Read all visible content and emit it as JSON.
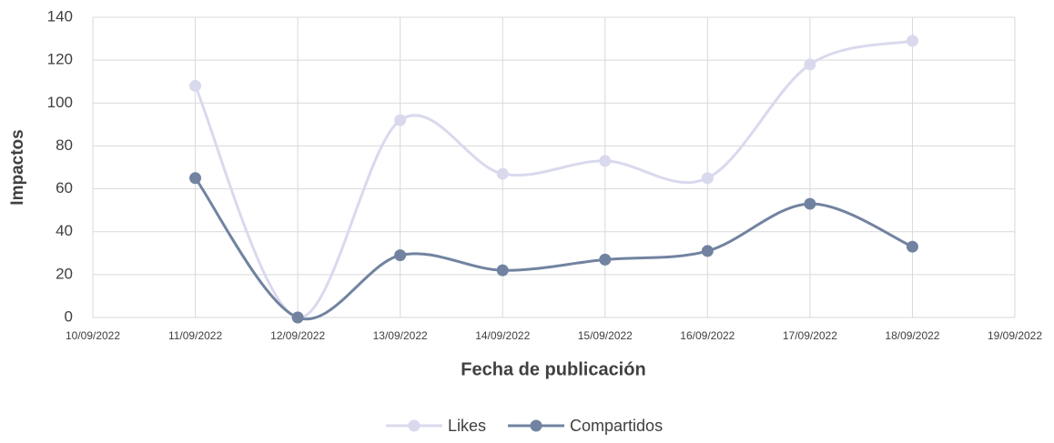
{
  "chart_data": {
    "type": "line",
    "x": [
      "11/09/2022",
      "12/09/2022",
      "13/09/2022",
      "14/09/2022",
      "15/09/2022",
      "16/09/2022",
      "17/09/2022",
      "18/09/2022"
    ],
    "series": [
      {
        "name": "Likes",
        "color": "#d9d9ee",
        "values": [
          108,
          0,
          92,
          67,
          73,
          65,
          118,
          129
        ]
      },
      {
        "name": "Compartidos",
        "color": "#7183a0",
        "values": [
          65,
          0,
          29,
          22,
          27,
          31,
          53,
          33
        ]
      }
    ],
    "xlim": [
      "10/09/2022",
      "19/09/2022"
    ],
    "xticks": [
      "10/09/2022",
      "11/09/2022",
      "12/09/2022",
      "13/09/2022",
      "14/09/2022",
      "15/09/2022",
      "16/09/2022",
      "17/09/2022",
      "18/09/2022",
      "19/09/2022"
    ],
    "ylim": [
      0,
      140
    ],
    "yticks": [
      0,
      20,
      40,
      60,
      80,
      100,
      120,
      140
    ],
    "xlabel": "Fecha de publicación",
    "ylabel": "Impactos",
    "grid": true,
    "smooth": true,
    "legend": "bottom"
  }
}
